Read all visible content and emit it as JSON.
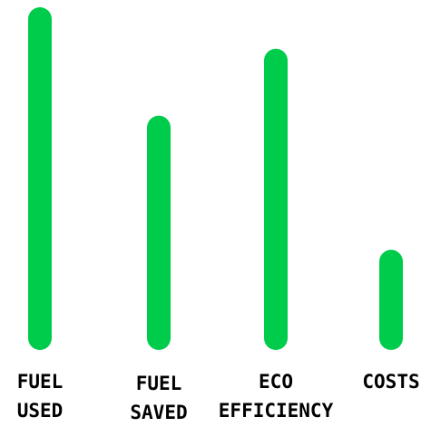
{
  "chart_data": {
    "type": "bar",
    "categories": [
      [
        "FUEL",
        "USED"
      ],
      [
        "FUEL",
        "SAVED"
      ],
      [
        "ECO",
        "EFFICIENCY"
      ],
      [
        "COSTS"
      ]
    ],
    "values": [
      100,
      66,
      87,
      24
    ],
    "bar_color": "#00cc4c",
    "ylim": [
      0,
      100
    ],
    "axes_visible": false,
    "grid": false,
    "legend": false
  }
}
